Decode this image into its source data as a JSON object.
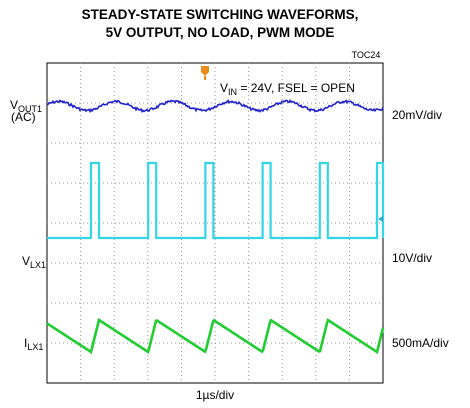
{
  "title": [
    "STEADY-STATE SWITCHING WAVEFORMS,",
    "5V OUTPUT, NO LOAD, PWM MODE"
  ],
  "tag": "TOC24",
  "annotation": {
    "main": "V",
    "sub": "IN",
    "rest": " = 24V, FSEL = OPEN"
  },
  "traces": [
    {
      "main": "V",
      "sub": "OUT1",
      "note": "(AC)",
      "scale": "20mV/div",
      "color": "#2222cc"
    },
    {
      "main": "V",
      "sub": "LX1",
      "scale": "10V/div",
      "color": "#33d6e6"
    },
    {
      "main": "I",
      "sub": "LX1",
      "scale": "500mA/div",
      "color": "#22cc33"
    }
  ],
  "timebase": "1µs/div"
}
